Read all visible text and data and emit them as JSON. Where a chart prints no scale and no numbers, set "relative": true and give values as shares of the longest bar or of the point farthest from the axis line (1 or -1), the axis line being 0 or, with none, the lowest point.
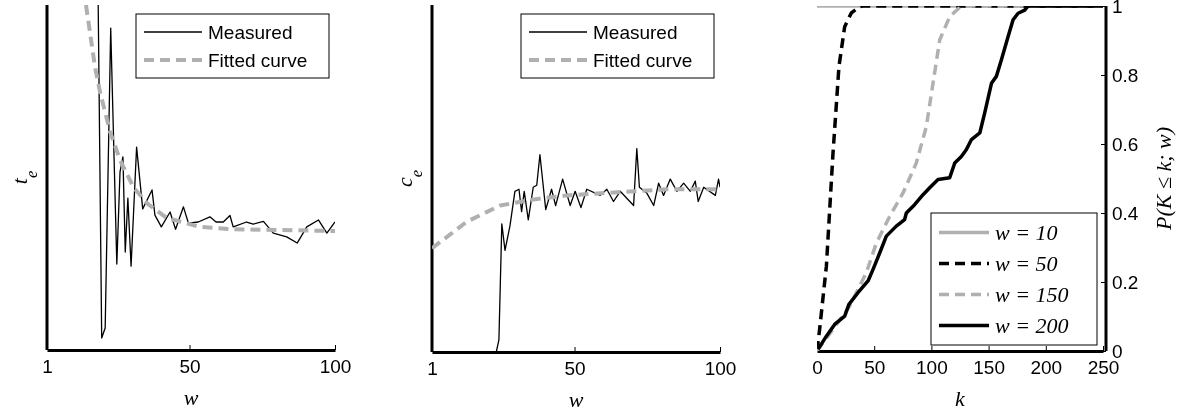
{
  "chart_data": [
    {
      "type": "line",
      "xlabel": "w",
      "ylabel": "t$_{e}$",
      "relative": true,
      "xlim": [
        1,
        100
      ],
      "xticks": [
        1,
        50,
        100
      ],
      "tick_labels": "x",
      "legend": "top right",
      "series": [
        {
          "name": "Measured",
          "color": "#000000",
          "line_style": "solid",
          "x": [
            18.6,
            19.8,
            21,
            22.9,
            25,
            26.1,
            27.1,
            27.9,
            28.8,
            29.9,
            31.8,
            33.9,
            37.1,
            38.1,
            40.3,
            43.3,
            45.2,
            47.9,
            49.6,
            53,
            57,
            59.1,
            61.6,
            63.9,
            65,
            69.6,
            71.9,
            75.4,
            78.8,
            83.4,
            87,
            90.3,
            94.3,
            97.2,
            100
          ],
          "values": [
            1,
            0.035,
            0.064,
            0.933,
            0.249,
            0.516,
            0.56,
            0.284,
            0.44,
            0.243,
            0.588,
            0.409,
            0.464,
            0.391,
            0.357,
            0.4,
            0.35,
            0.415,
            0.368,
            0.371,
            0.386,
            0.371,
            0.371,
            0.39,
            0.357,
            0.371,
            0.365,
            0.373,
            0.339,
            0.328,
            0.31,
            0.357,
            0.377,
            0.339,
            0.371
          ]
        },
        {
          "name": "Fitted curve",
          "color": "#b0b0b0",
          "line_style": "dashed",
          "x": [
            14.4,
            17.5,
            19.3,
            22.7,
            26.1,
            30.7,
            35.3,
            42.1,
            53.5,
            65,
            100
          ],
          "values": [
            1,
            0.82,
            0.745,
            0.632,
            0.551,
            0.472,
            0.426,
            0.383,
            0.357,
            0.35,
            0.345
          ]
        }
      ]
    },
    {
      "type": "line",
      "xlabel": "w",
      "ylabel": "c$_{e}$",
      "relative": true,
      "xlim": [
        1,
        100
      ],
      "xticks": [
        1,
        50,
        100
      ],
      "tick_labels": "x",
      "legend": "top right",
      "series": [
        {
          "name": "Measured",
          "color": "#000000",
          "line_style": "solid",
          "x": [
            23.1,
            24,
            25,
            26.1,
            27.8,
            29.5,
            30.9,
            31.8,
            32.7,
            34.1,
            35.8,
            37,
            38.1,
            40.1,
            42.1,
            43.5,
            45.9,
            48.5,
            50.2,
            52.2,
            54.2,
            58.8,
            61.1,
            63.4,
            65.7,
            70.3,
            71.4,
            72.3,
            74.9,
            77.2,
            78.9,
            80.6,
            82.9,
            85.2,
            87.5,
            89.8,
            91.5,
            92.5,
            94.4,
            98.4,
            99.5,
            100
          ],
          "values": [
            0,
            0.06,
            0.63,
            0.5,
            0.62,
            0.79,
            0.8,
            0.69,
            0.79,
            0.65,
            0.81,
            0.82,
            0.97,
            0.7,
            0.8,
            0.72,
            0.85,
            0.72,
            0.79,
            0.71,
            0.8,
            0.77,
            0.8,
            0.74,
            0.79,
            0.72,
            1,
            0.81,
            0.78,
            0.72,
            0.83,
            0.77,
            0.85,
            0.79,
            0.83,
            0.79,
            0.84,
            0.74,
            0.81,
            0.77,
            0.85,
            0.81
          ]
        },
        {
          "name": "Fitted curve",
          "color": "#b0b0b0",
          "line_style": "dashed",
          "x": [
            1,
            12.9,
            24.4,
            35.9,
            47.4,
            58.8,
            70.3,
            81.8,
            100
          ],
          "values": [
            0.51,
            0.64,
            0.72,
            0.75,
            0.77,
            0.78,
            0.79,
            0.8,
            0.8
          ]
        }
      ]
    },
    {
      "type": "line",
      "xlabel": "k",
      "y2label": "P(K ≤ k; w)",
      "xlim": [
        0,
        250
      ],
      "xticks": [
        0,
        50,
        100,
        150,
        200,
        250
      ],
      "y2lim": [
        0,
        1
      ],
      "y2ticks": [
        0,
        0.2,
        0.4,
        0.6,
        0.8,
        1
      ],
      "legend": "bottom right",
      "series": [
        {
          "name": "w = 10",
          "color": "#b0b0b0",
          "line_style": "solid",
          "axis": "y2",
          "x": [
            0,
            250
          ],
          "values": [
            1,
            1
          ]
        },
        {
          "name": "w = 50",
          "color": "#000000",
          "line_style": "dashed",
          "axis": "y2",
          "x": [
            0,
            2.3,
            8.2,
            14,
            19.2,
            24.2,
            30,
            37.3,
            40,
            250
          ],
          "values": [
            0,
            0.063,
            0.246,
            0.574,
            0.825,
            0.94,
            0.98,
            0.998,
            1,
            1
          ]
        },
        {
          "name": "w = 150",
          "color": "#b0b0b0",
          "line_style": "dashed",
          "axis": "y2",
          "x": [
            0,
            14,
            28.5,
            43.1,
            51.9,
            63.5,
            75.2,
            86.8,
            95.6,
            101.4,
            107.3,
            116,
            124.7,
            130.5,
            250
          ],
          "values": [
            0,
            0.063,
            0.13,
            0.227,
            0.313,
            0.39,
            0.458,
            0.545,
            0.651,
            0.776,
            0.902,
            0.969,
            0.996,
            1,
            1
          ]
        },
        {
          "name": "w = 200",
          "color": "#000000",
          "line_style": "solid",
          "axis": "y2",
          "x": [
            0.9,
            8.2,
            15.4,
            24.2,
            27.9,
            35.8,
            44.6,
            48.9,
            54.8,
            60.6,
            69.3,
            76.6,
            78.1,
            85.3,
            92.7,
            98.5,
            105.8,
            116,
            120.4,
            126.2,
            130.6,
            135,
            142.3,
            146.6,
            152.5,
            156.8,
            161.2,
            167,
            171.4,
            175.8,
            181.6,
            184.5,
            250
          ],
          "values": [
            0.005,
            0.043,
            0.077,
            0.101,
            0.135,
            0.169,
            0.203,
            0.236,
            0.284,
            0.333,
            0.362,
            0.381,
            0.4,
            0.424,
            0.453,
            0.473,
            0.497,
            0.502,
            0.545,
            0.564,
            0.584,
            0.613,
            0.632,
            0.69,
            0.776,
            0.796,
            0.844,
            0.911,
            0.96,
            0.979,
            0.988,
            1,
            1
          ]
        }
      ]
    }
  ]
}
